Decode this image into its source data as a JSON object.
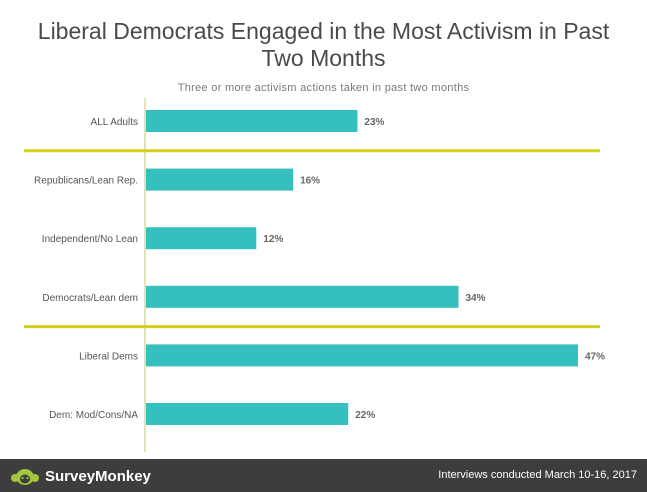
{
  "header": {
    "title_line1": "Liberal Democrats Engaged in the Most Activism in Past",
    "title_line2": "Two Months"
  },
  "chart_data": {
    "type": "bar",
    "orientation": "horizontal",
    "title": "Liberal Democrats Engaged in the Most Activism in Past Two Months",
    "subtitle": "Three or more activism actions taken in past two months",
    "categories": [
      "ALL Adults",
      "Republicans/Lean Rep.",
      "Independent/No Lean",
      "Democrats/Lean dem",
      "Liberal Dems",
      "Dem: Mod/Cons/NA"
    ],
    "values": [
      23,
      16,
      12,
      34,
      47,
      22
    ],
    "data_labels": [
      "23%",
      "16%",
      "12%",
      "34%",
      "47%",
      "22%"
    ],
    "xlim": [
      0,
      50
    ],
    "grid": false,
    "bar_color": "#35bfbf",
    "divider_color": "#d4cf1f",
    "divider_after_index": [
      0,
      3
    ]
  },
  "footer": {
    "brand": "SurveyMonkey",
    "note": "Interviews conducted March 10-16, 2017",
    "logo_icon": "surveymonkey-logo-icon"
  }
}
